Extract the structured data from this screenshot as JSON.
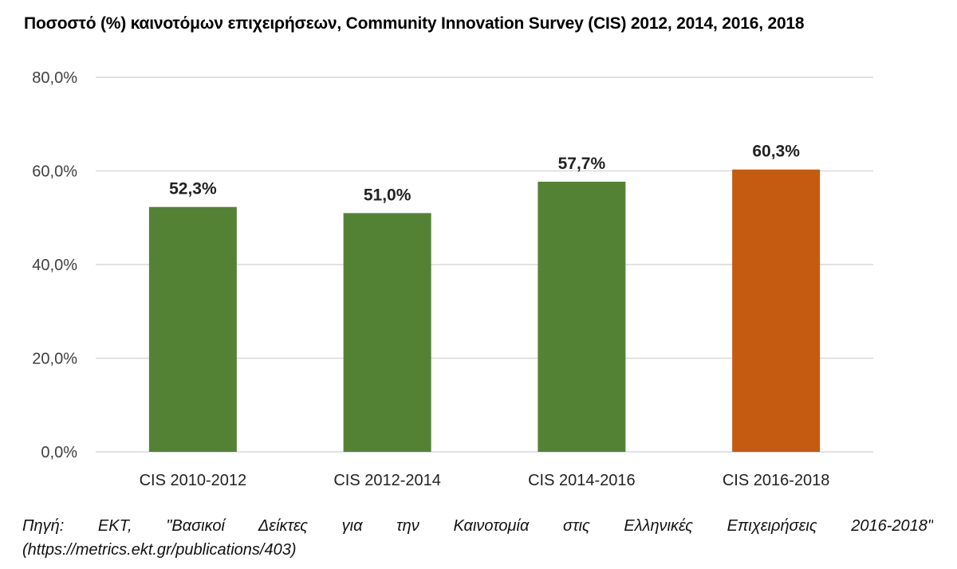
{
  "title": "Ποσοστό (%) καινοτόμων επιχειρήσεων, Community Innovation Survey (CIS) 2012, 2014, 2016, 2018",
  "source": {
    "line1": "Πηγή: ΕΚΤ, \"Βασικοί Δείκτες για την Καινοτομία στις Ελληνικές Επιχειρήσεις 2016-2018\"",
    "line2": "(https://metrics.ekt.gr/publications/403)"
  },
  "colors": {
    "bar": "#548235",
    "highlight": "#C55A11",
    "grid": "#D9D9D9"
  },
  "chart_data": {
    "type": "bar",
    "categories": [
      "CIS 2010-2012",
      "CIS 2012-2014",
      "CIS 2014-2016",
      "CIS 2016-2018"
    ],
    "values": [
      52.3,
      51.0,
      57.7,
      60.3
    ],
    "data_labels": [
      "52,3%",
      "51,0%",
      "57,7%",
      "60,3%"
    ],
    "highlight_index": 3,
    "ylim": [
      0,
      80
    ],
    "yticks": [
      0,
      20,
      40,
      60,
      80
    ],
    "ytick_labels": [
      "0,0%",
      "20,0%",
      "40,0%",
      "60,0%",
      "80,0%"
    ],
    "grid": true,
    "xlabel": "",
    "ylabel": ""
  }
}
